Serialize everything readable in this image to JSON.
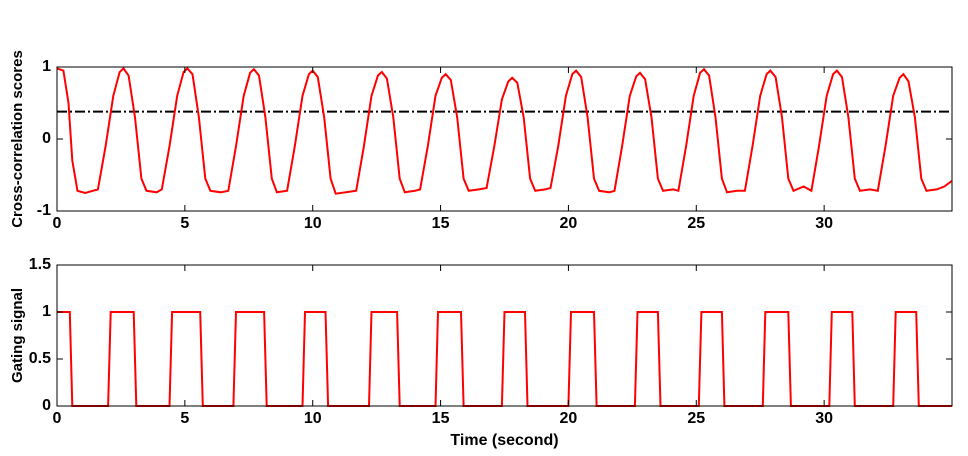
{
  "chart_data": [
    {
      "type": "line",
      "ylabel": "Cross-correlation scores",
      "xlim": [
        0,
        35
      ],
      "ylim": [
        -1,
        1
      ],
      "xticks": [
        0,
        5,
        10,
        15,
        20,
        25,
        30
      ],
      "yticks": [
        -1,
        0,
        1
      ],
      "reference_line": 0.38,
      "reference_color": "#000000",
      "x": [
        0,
        0.25,
        0.45,
        0.6,
        0.8,
        1.1,
        1.4,
        1.6,
        1.9,
        2.2,
        2.45,
        2.6,
        2.8,
        3.05,
        3.3,
        3.5,
        3.9,
        4.1,
        4.4,
        4.7,
        4.95,
        5.1,
        5.3,
        5.55,
        5.8,
        6.0,
        6.4,
        6.7,
        7.0,
        7.3,
        7.55,
        7.7,
        7.9,
        8.15,
        8.4,
        8.6,
        9.0,
        9.3,
        9.6,
        9.85,
        10.0,
        10.2,
        10.45,
        10.7,
        10.9,
        11.3,
        11.7,
        12.0,
        12.3,
        12.55,
        12.7,
        12.9,
        13.15,
        13.4,
        13.6,
        14.0,
        14.2,
        14.5,
        14.8,
        15.05,
        15.2,
        15.4,
        15.65,
        15.9,
        16.1,
        16.5,
        16.8,
        17.1,
        17.4,
        17.65,
        17.8,
        18.0,
        18.25,
        18.5,
        18.7,
        19.1,
        19.3,
        19.6,
        19.9,
        20.15,
        20.3,
        20.5,
        20.75,
        21.0,
        21.2,
        21.6,
        21.8,
        22.1,
        22.4,
        22.65,
        22.8,
        23.0,
        23.25,
        23.5,
        23.7,
        24.1,
        24.3,
        24.6,
        24.9,
        25.15,
        25.3,
        25.5,
        25.75,
        26.0,
        26.2,
        26.6,
        26.9,
        27.2,
        27.5,
        27.75,
        27.9,
        28.1,
        28.35,
        28.6,
        28.8,
        29.2,
        29.5,
        29.8,
        30.1,
        30.35,
        30.5,
        30.7,
        30.95,
        31.2,
        31.4,
        31.8,
        32.1,
        32.4,
        32.7,
        32.95,
        33.1,
        33.3,
        33.55,
        33.8,
        34.0,
        34.4,
        34.7,
        35.0
      ],
      "series": [
        {
          "color": "#ff0000",
          "values": [
            0.98,
            0.95,
            0.5,
            -0.3,
            -0.72,
            -0.75,
            -0.72,
            -0.7,
            -0.1,
            0.6,
            0.93,
            0.98,
            0.88,
            0.3,
            -0.55,
            -0.72,
            -0.74,
            -0.7,
            -0.1,
            0.6,
            0.93,
            0.98,
            0.9,
            0.3,
            -0.55,
            -0.72,
            -0.74,
            -0.72,
            -0.1,
            0.6,
            0.92,
            0.97,
            0.88,
            0.3,
            -0.55,
            -0.74,
            -0.72,
            -0.1,
            0.6,
            0.9,
            0.95,
            0.86,
            0.3,
            -0.55,
            -0.76,
            -0.74,
            -0.72,
            -0.1,
            0.6,
            0.88,
            0.93,
            0.84,
            0.3,
            -0.55,
            -0.74,
            -0.72,
            -0.7,
            -0.1,
            0.6,
            0.85,
            0.9,
            0.82,
            0.3,
            -0.55,
            -0.72,
            -0.7,
            -0.68,
            -0.1,
            0.55,
            0.8,
            0.85,
            0.78,
            0.3,
            -0.55,
            -0.72,
            -0.7,
            -0.68,
            -0.1,
            0.6,
            0.9,
            0.95,
            0.86,
            0.3,
            -0.55,
            -0.72,
            -0.74,
            -0.72,
            -0.1,
            0.6,
            0.87,
            0.92,
            0.83,
            0.3,
            -0.55,
            -0.72,
            -0.7,
            -0.72,
            -0.1,
            0.6,
            0.92,
            0.97,
            0.88,
            0.3,
            -0.55,
            -0.74,
            -0.72,
            -0.72,
            -0.1,
            0.6,
            0.9,
            0.95,
            0.86,
            0.3,
            -0.55,
            -0.72,
            -0.66,
            -0.72,
            -0.1,
            0.6,
            0.9,
            0.95,
            0.86,
            0.3,
            -0.55,
            -0.72,
            -0.7,
            -0.72,
            -0.1,
            0.6,
            0.85,
            0.9,
            0.8,
            0.3,
            -0.55,
            -0.72,
            -0.7,
            -0.66,
            -0.58
          ]
        }
      ]
    },
    {
      "type": "line",
      "ylabel": "Gating signal",
      "xlabel": "Time (second)",
      "xlim": [
        0,
        35
      ],
      "ylim": [
        0,
        1.5
      ],
      "xticks": [
        0,
        5,
        10,
        15,
        20,
        25,
        30
      ],
      "yticks": [
        0,
        0.5,
        1,
        1.5
      ],
      "x": [
        0,
        0.5,
        0.6,
        2.0,
        2.1,
        3.0,
        3.1,
        4.4,
        4.5,
        5.6,
        5.7,
        6.9,
        7.0,
        8.1,
        8.2,
        9.6,
        9.7,
        10.5,
        10.6,
        12.2,
        12.3,
        13.3,
        13.4,
        14.8,
        14.9,
        15.8,
        15.9,
        17.4,
        17.5,
        18.3,
        18.4,
        20.0,
        20.1,
        21.0,
        21.1,
        22.6,
        22.7,
        23.5,
        23.6,
        25.1,
        25.2,
        26.0,
        26.1,
        27.6,
        27.7,
        28.6,
        28.7,
        30.2,
        30.3,
        31.1,
        31.2,
        32.7,
        32.8,
        33.6,
        33.7,
        35
      ],
      "series": [
        {
          "color": "#ff0000",
          "values": [
            1,
            1,
            0,
            0,
            1,
            1,
            0,
            0,
            1,
            1,
            0,
            0,
            1,
            1,
            0,
            0,
            1,
            1,
            0,
            0,
            1,
            1,
            0,
            0,
            1,
            1,
            0,
            0,
            1,
            1,
            0,
            0,
            1,
            1,
            0,
            0,
            1,
            1,
            0,
            0,
            1,
            1,
            0,
            0,
            1,
            1,
            0,
            0,
            1,
            1,
            0,
            0,
            1,
            1,
            0,
            0
          ]
        }
      ]
    }
  ]
}
